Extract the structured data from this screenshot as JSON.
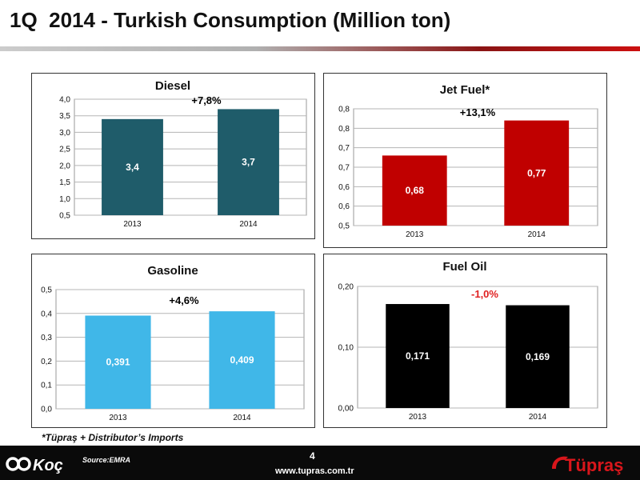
{
  "header": {
    "title": "1Q  2014 - Turkish Consumption (Million ton)"
  },
  "footer": {
    "footnote": "*Tüpraş + Distributor’s Imports",
    "source": "Source:EMRA",
    "page_number": "4",
    "website": "www.tupras.com.tr",
    "koc_logo_text": "Koç",
    "tupras_logo_text": "Tüpraş"
  },
  "colors": {
    "diesel": "#1f5c6a",
    "jet_fuel": "#c00000",
    "gasoline": "#40b7e8",
    "fuel_oil": "#000000",
    "positive_change": "#000000",
    "negative_change": "#e02020",
    "brand_red": "#d8161b"
  },
  "chart_data": [
    {
      "id": "diesel",
      "type": "bar",
      "title": "Diesel",
      "categories": [
        "2013",
        "2014"
      ],
      "values": [
        3.4,
        3.7
      ],
      "value_labels": [
        "3,4",
        "3,7"
      ],
      "change_label": "+7,8%",
      "change_positive": true,
      "ylim": [
        0.5,
        4.0
      ],
      "yticks": [
        0.5,
        1.0,
        1.5,
        2.0,
        2.5,
        3.0,
        3.5,
        4.0
      ],
      "ytick_labels": [
        "0,5",
        "1,0",
        "1,5",
        "2,0",
        "2,5",
        "3,0",
        "3,5",
        "4,0"
      ],
      "grid": true,
      "color": "#1f5c6a"
    },
    {
      "id": "jet-fuel",
      "type": "bar",
      "title": "Jet Fuel*",
      "categories": [
        "2013",
        "2014"
      ],
      "values": [
        0.68,
        0.77
      ],
      "value_labels": [
        "0,68",
        "0,77"
      ],
      "change_label": "+13,1%",
      "change_positive": true,
      "ylim": [
        0.5,
        0.8
      ],
      "yticks": [
        0.5,
        0.55,
        0.6,
        0.65,
        0.7,
        0.75,
        0.8
      ],
      "ytick_labels": [
        "0,5",
        "0,6",
        "0,6",
        "0,7",
        "0,7",
        "0,8",
        "0,8"
      ],
      "grid": true,
      "color": "#c00000"
    },
    {
      "id": "gasoline",
      "type": "bar",
      "title": "Gasoline",
      "categories": [
        "2013",
        "2014"
      ],
      "values": [
        0.391,
        0.409
      ],
      "value_labels": [
        "0,391",
        "0,409"
      ],
      "change_label": "+4,6%",
      "change_positive": true,
      "ylim": [
        0.0,
        0.5
      ],
      "yticks": [
        0.0,
        0.1,
        0.2,
        0.3,
        0.4,
        0.5
      ],
      "ytick_labels": [
        "0,0",
        "0,1",
        "0,2",
        "0,3",
        "0,4",
        "0,5"
      ],
      "grid": true,
      "color": "#40b7e8"
    },
    {
      "id": "fuel-oil",
      "type": "bar",
      "title": "Fuel Oil",
      "categories": [
        "2013",
        "2014"
      ],
      "values": [
        0.171,
        0.169
      ],
      "value_labels": [
        "0,171",
        "0,169"
      ],
      "change_label": "-1,0%",
      "change_positive": false,
      "ylim": [
        0.0,
        0.2
      ],
      "yticks": [
        0.0,
        0.1,
        0.2
      ],
      "ytick_labels": [
        "0,00",
        "0,10",
        "0,20"
      ],
      "grid": true,
      "color": "#000000"
    }
  ]
}
